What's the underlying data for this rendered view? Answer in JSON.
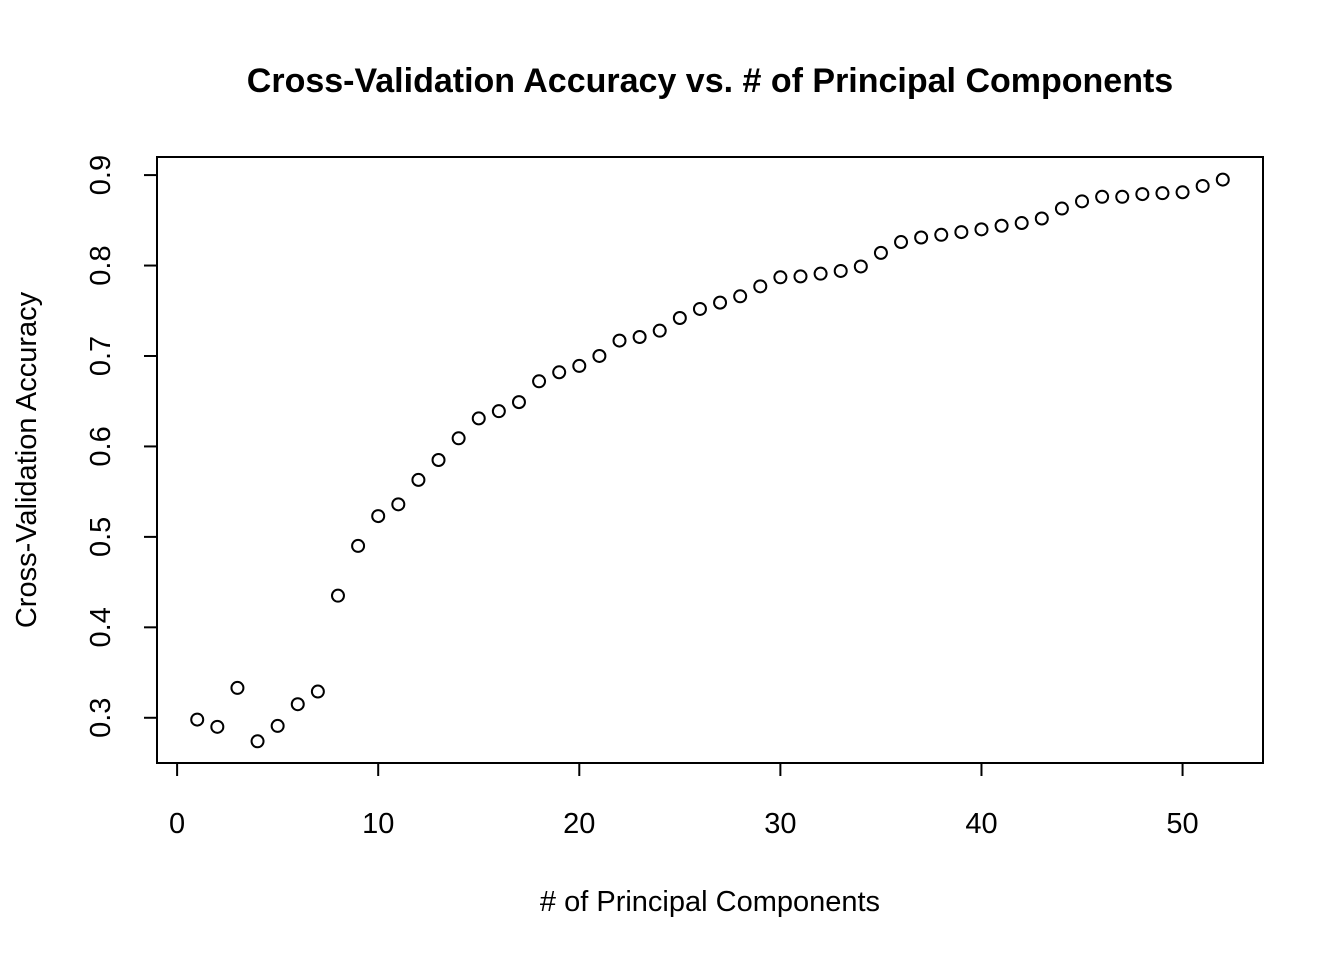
{
  "chart_data": {
    "type": "scatter",
    "title": "Cross-Validation Accuracy vs. # of Principal Components",
    "xlabel": "# of Principal Components",
    "ylabel": "Cross-Validation Accuracy",
    "xlim": [
      -1,
      54
    ],
    "ylim": [
      0.25,
      0.92
    ],
    "x_ticks": [
      0,
      10,
      20,
      30,
      40,
      50
    ],
    "x_tick_labels": [
      "0",
      "10",
      "20",
      "30",
      "40",
      "50"
    ],
    "y_ticks": [
      0.3,
      0.4,
      0.5,
      0.6,
      0.7,
      0.8,
      0.9
    ],
    "y_tick_labels": [
      "0.3",
      "0.4",
      "0.5",
      "0.6",
      "0.7",
      "0.8",
      "0.9"
    ],
    "grid": false,
    "marker": "open-circle",
    "x": [
      1,
      2,
      3,
      4,
      5,
      6,
      7,
      8,
      9,
      10,
      11,
      12,
      13,
      14,
      15,
      16,
      17,
      18,
      19,
      20,
      21,
      22,
      23,
      24,
      25,
      26,
      27,
      28,
      29,
      30,
      31,
      32,
      33,
      34,
      35,
      36,
      37,
      38,
      39,
      40,
      41,
      42,
      43,
      44,
      45,
      46,
      47,
      48,
      49,
      50,
      51,
      52
    ],
    "y": [
      0.298,
      0.29,
      0.333,
      0.274,
      0.291,
      0.315,
      0.329,
      0.435,
      0.49,
      0.523,
      0.536,
      0.563,
      0.585,
      0.609,
      0.631,
      0.639,
      0.649,
      0.672,
      0.682,
      0.689,
      0.7,
      0.717,
      0.721,
      0.728,
      0.742,
      0.752,
      0.759,
      0.766,
      0.777,
      0.787,
      0.788,
      0.791,
      0.794,
      0.799,
      0.814,
      0.826,
      0.831,
      0.834,
      0.837,
      0.84,
      0.844,
      0.847,
      0.852,
      0.863,
      0.871,
      0.876,
      0.876,
      0.879,
      0.88,
      0.881,
      0.888,
      0.895
    ]
  }
}
